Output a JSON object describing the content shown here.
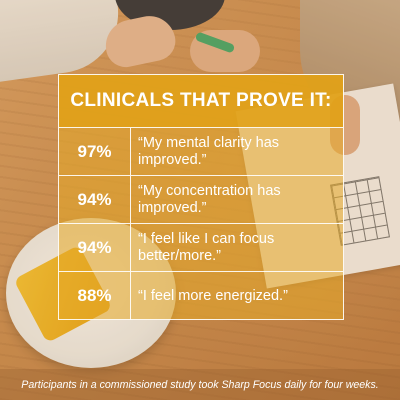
{
  "panel": {
    "title": "CLINICALS THAT PROVE IT:",
    "rows": [
      {
        "percent": "97%",
        "quote": "“My mental clarity has improved.”"
      },
      {
        "percent": "94%",
        "quote": "“My concentration has improved.”"
      },
      {
        "percent": "94%",
        "quote": "“I feel like I can focus better/more.”"
      },
      {
        "percent": "88%",
        "quote": "“I feel more energized.”"
      }
    ]
  },
  "footnote": "Participants in a commissioned study took Sharp Focus daily for four weeks.",
  "colors": {
    "header_gold": "#e0a118",
    "panel_gold": "#e6aa28",
    "text": "#ffffff",
    "background_wood": "#c98d52"
  }
}
